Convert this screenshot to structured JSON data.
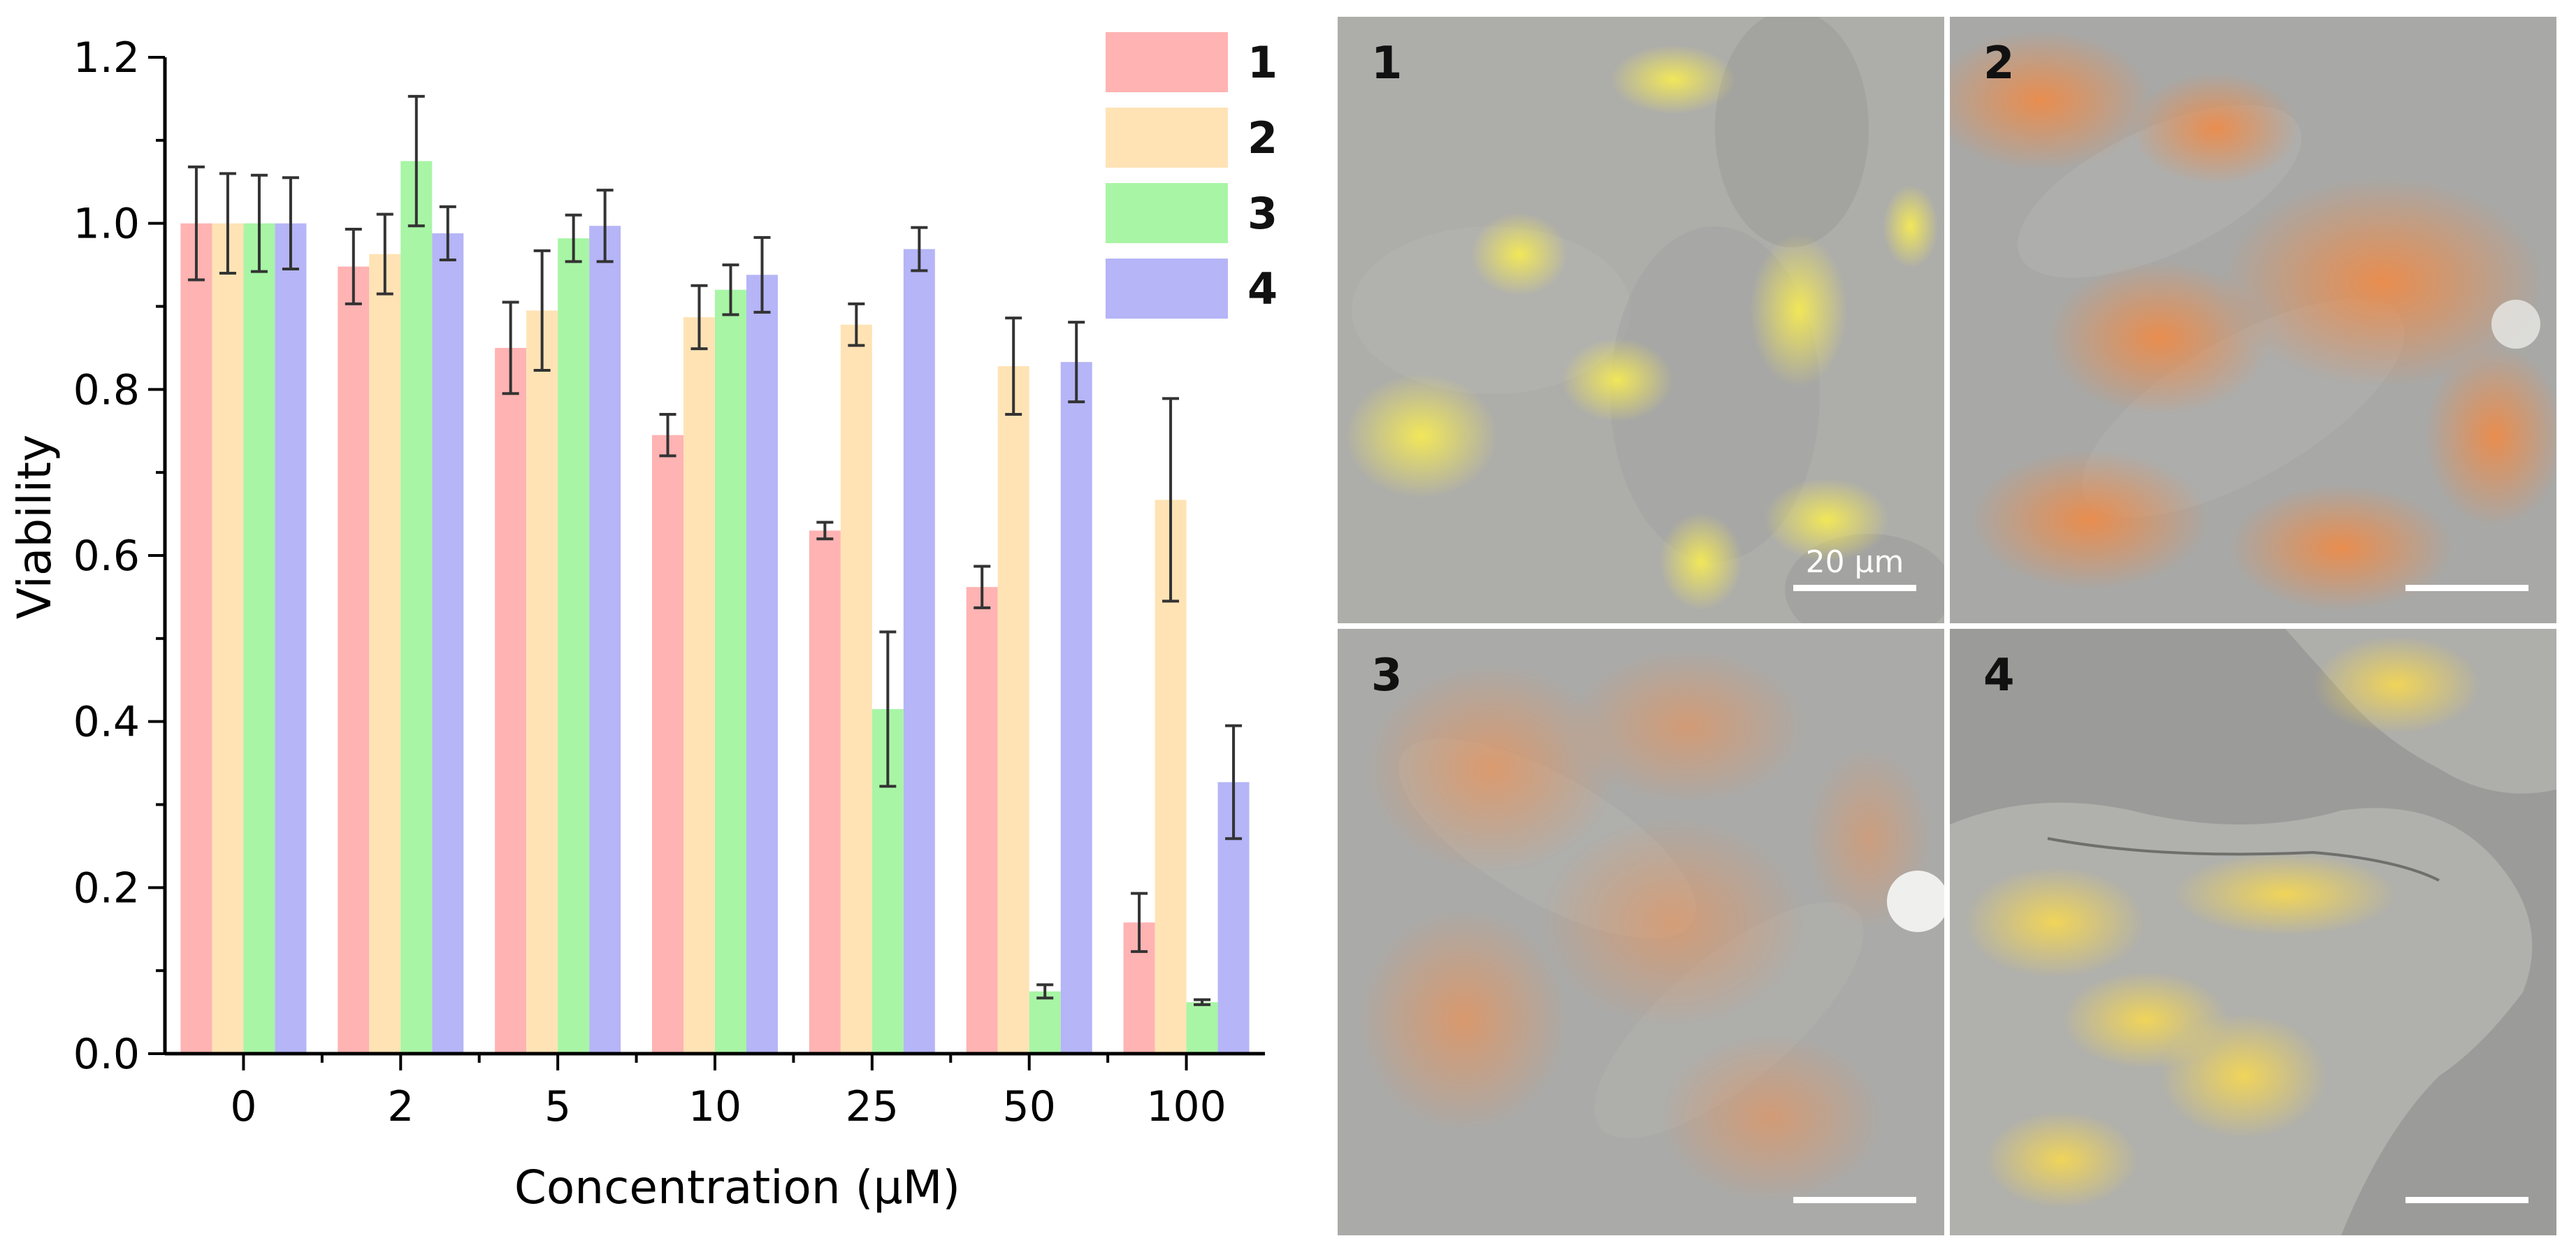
{
  "chart_data": {
    "type": "bar",
    "xlabel": "Concentration (μM)",
    "ylabel": "Viability",
    "ylim": [
      0,
      1.2
    ],
    "yticks": [
      "0.0",
      "0.2",
      "0.4",
      "0.6",
      "0.8",
      "1.0",
      "1.2"
    ],
    "categories": [
      "0",
      "2",
      "5",
      "10",
      "25",
      "50",
      "100"
    ],
    "legend_position": "top-right",
    "series": [
      {
        "name": "1",
        "color": "#ffb3b3",
        "values": [
          1.0,
          0.948,
          0.85,
          0.745,
          0.63,
          0.562,
          0.158
        ],
        "errors": [
          0.068,
          0.045,
          0.055,
          0.025,
          0.01,
          0.025,
          0.035
        ]
      },
      {
        "name": "2",
        "color": "#ffe3b5",
        "values": [
          1.0,
          0.963,
          0.895,
          0.887,
          0.878,
          0.828,
          0.667
        ],
        "errors": [
          0.06,
          0.048,
          0.072,
          0.038,
          0.025,
          0.058,
          0.122
        ]
      },
      {
        "name": "3",
        "color": "#a8f5a5",
        "values": [
          1.0,
          1.075,
          0.982,
          0.92,
          0.415,
          0.075,
          0.062
        ],
        "errors": [
          0.058,
          0.078,
          0.028,
          0.03,
          0.093,
          0.008,
          0.003
        ]
      },
      {
        "name": "4",
        "color": "#b5b5f7",
        "values": [
          1.0,
          0.988,
          0.997,
          0.938,
          0.969,
          0.833,
          0.327
        ],
        "errors": [
          0.055,
          0.032,
          0.043,
          0.045,
          0.026,
          0.048,
          0.068
        ]
      }
    ]
  },
  "images": {
    "panels": [
      {
        "label": "1",
        "tint": "yellow",
        "scale_text": "20 μm"
      },
      {
        "label": "2",
        "tint": "orange"
      },
      {
        "label": "3",
        "tint": "orange"
      },
      {
        "label": "4",
        "tint": "yellow"
      }
    ]
  }
}
